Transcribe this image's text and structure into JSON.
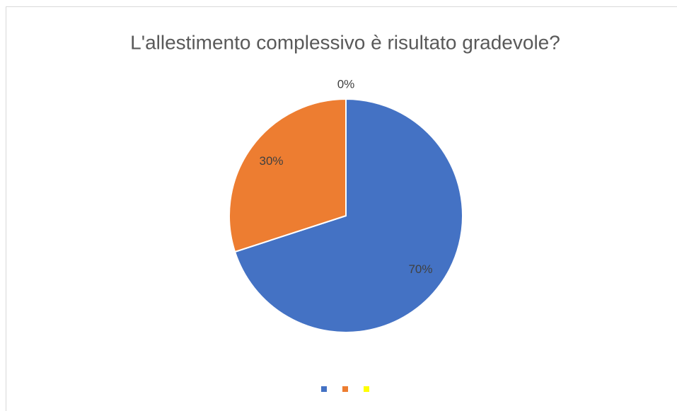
{
  "chart_data": {
    "type": "pie",
    "title": "L'allestimento complessivo è risultato gradevole?",
    "categories": [
      null,
      null,
      null
    ],
    "values": [
      70,
      30,
      0
    ],
    "value_labels": [
      "70%",
      "30%",
      "0%"
    ],
    "colors": [
      "#4472c4",
      "#ed7d31",
      "#ffff00"
    ],
    "legend": "bottom"
  }
}
